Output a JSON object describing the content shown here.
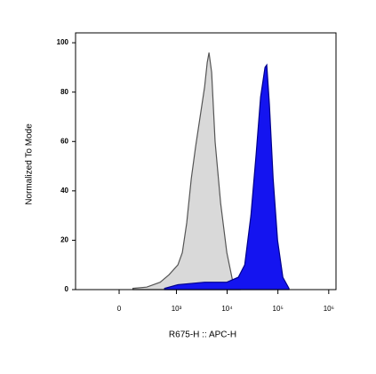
{
  "chart_data": {
    "type": "area",
    "x_label": "R675-H :: APC-H",
    "y_label": "Normalized To Mode",
    "xscale": "biexponential",
    "xlim": [
      -530,
      1390000
    ],
    "ylim": [
      0,
      104
    ],
    "xticks": [
      0,
      {
        "value": 1000,
        "label": "10³"
      },
      {
        "value": 10000,
        "label": "10⁴"
      },
      {
        "value": 100000,
        "label": "10⁵"
      },
      {
        "value": 1000000,
        "label": "10⁶"
      }
    ],
    "yticks": [
      0,
      20,
      40,
      60,
      80,
      100
    ],
    "series": [
      {
        "color": "#d9d9d9",
        "edge_color": "#555555",
        "x": [
          100,
          240,
          470,
          710,
          1070,
          1310,
          1600,
          1970,
          2400,
          2940,
          3600,
          4060,
          4400,
          4960,
          5800,
          7460,
          9870,
          13000,
          18000
        ],
        "values": [
          0.5,
          1,
          3,
          6,
          10,
          15,
          27,
          45,
          58,
          70,
          82,
          92,
          96,
          88,
          60,
          35,
          15,
          3,
          0.5
        ]
      },
      {
        "color": "#1414f0",
        "edge_color": "#00008b",
        "x": [
          580,
          1070,
          3600,
          9870,
          16600,
          22200,
          29400,
          37300,
          45600,
          55700,
          60300,
          68000,
          80500,
          98400,
          125000,
          165000
        ],
        "values": [
          0.5,
          2,
          3,
          3,
          5,
          10,
          30,
          55,
          78,
          90,
          91,
          75,
          45,
          20,
          5,
          0.5
        ]
      }
    ]
  }
}
